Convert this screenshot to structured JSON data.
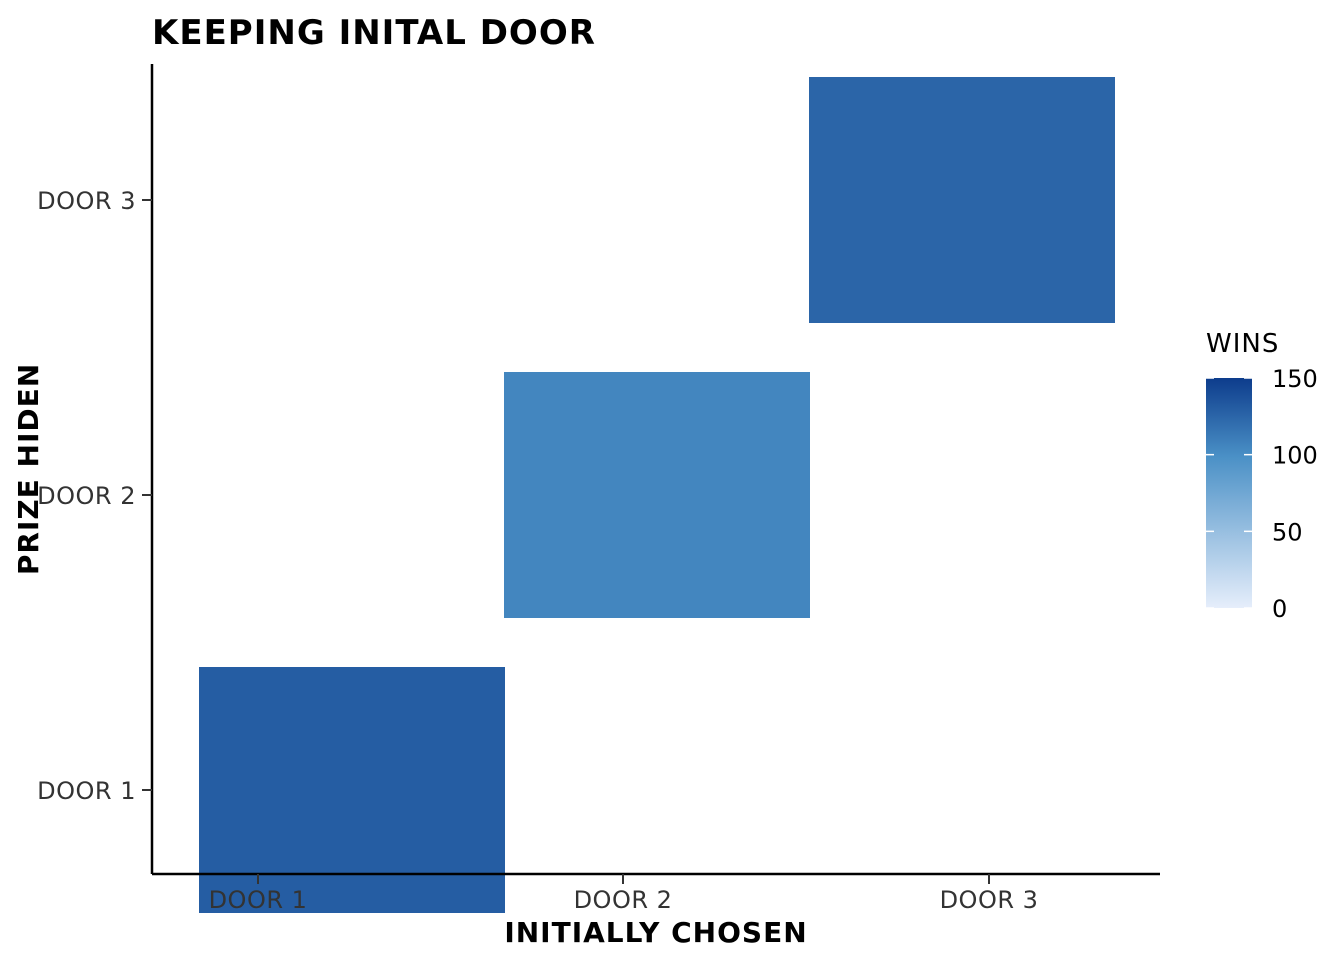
{
  "chart_data": {
    "type": "heatmap",
    "title": "KEEPING INITAL DOOR",
    "xlabel": "INITIALLY CHOSEN",
    "ylabel": "PRIZE HIDEN",
    "x_categories": [
      "DOOR 1",
      "DOOR 2",
      "DOOR 3"
    ],
    "y_categories": [
      "DOOR 1",
      "DOOR 2",
      "DOOR 3"
    ],
    "cells": [
      {
        "x": "DOOR 1",
        "y": "DOOR 1",
        "value": 130
      },
      {
        "x": "DOOR 2",
        "y": "DOOR 2",
        "value": 105
      },
      {
        "x": "DOOR 3",
        "y": "DOOR 3",
        "value": 125
      }
    ],
    "legend": {
      "title": "WINS",
      "min": 0,
      "max": 150,
      "ticks": [
        0,
        50,
        100,
        150
      ],
      "tick_labels": [
        "0",
        "50",
        "100",
        "150"
      ],
      "color_low": "#e6eefb",
      "color_mid": "#4a90c6",
      "color_high": "#0d3c8c"
    },
    "grid": false,
    "legend_position": "right"
  }
}
